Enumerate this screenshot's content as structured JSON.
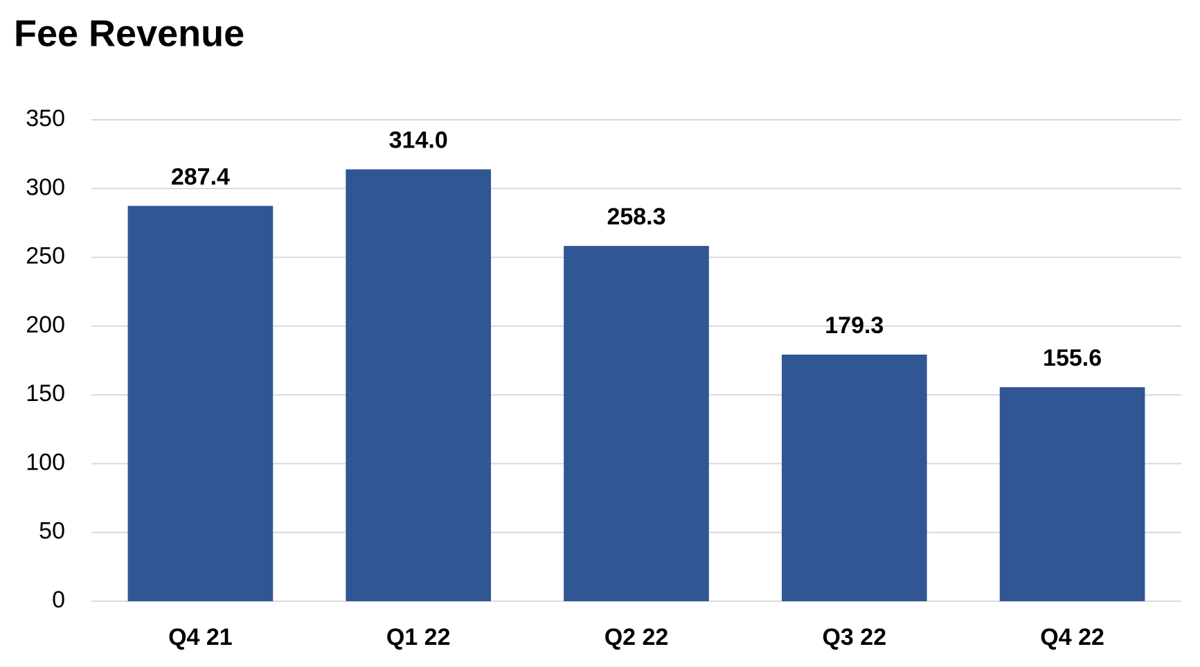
{
  "chart_data": {
    "type": "bar",
    "title": "Fee Revenue",
    "categories": [
      "Q4 21",
      "Q1 22",
      "Q2 22",
      "Q3 22",
      "Q4 22"
    ],
    "values": [
      287.4,
      314.0,
      258.3,
      179.3,
      155.6
    ],
    "value_labels": [
      "287.4",
      "314.0",
      "258.3",
      "179.3",
      "155.6"
    ],
    "color": "#305694",
    "ylim": [
      0,
      350
    ],
    "yticks": [
      0,
      50,
      100,
      150,
      200,
      250,
      300,
      350
    ],
    "grid": true
  }
}
